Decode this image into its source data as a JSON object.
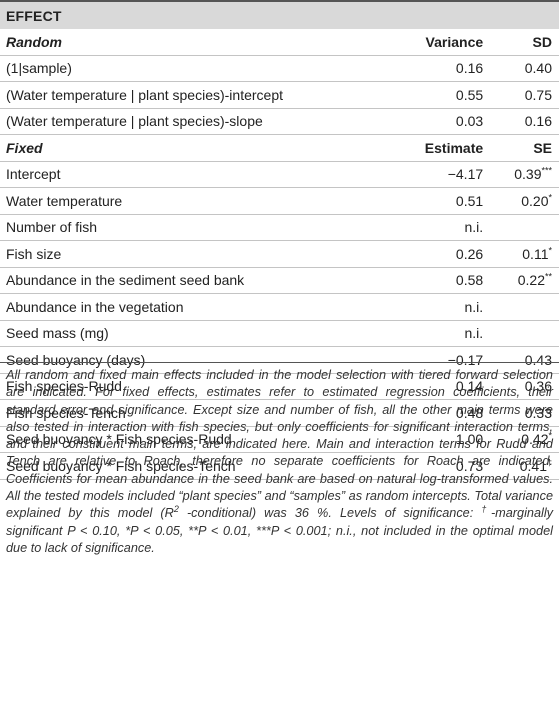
{
  "header": {
    "label": "EFFECT"
  },
  "sections": [
    {
      "title": "Random",
      "col2": "Variance",
      "col3": "SD",
      "rows": [
        {
          "label": "(1|sample)",
          "value": "0.16",
          "error": "0.40",
          "sig": ""
        },
        {
          "label": "(Water temperature | plant species)-intercept",
          "value": "0.55",
          "error": "0.75",
          "sig": ""
        },
        {
          "label": "(Water temperature | plant species)-slope",
          "value": "0.03",
          "error": "0.16",
          "sig": ""
        }
      ]
    },
    {
      "title": "Fixed",
      "col2": "Estimate",
      "col3": "SE",
      "rows": [
        {
          "label": "Intercept",
          "value": "−4.17",
          "error": "0.39",
          "sig": "***"
        },
        {
          "label": "Water temperature",
          "value": "0.51",
          "error": "0.20",
          "sig": "*"
        },
        {
          "label": "Number of fish",
          "value": "n.i.",
          "error": "",
          "sig": ""
        },
        {
          "label": "Fish size",
          "value": "0.26",
          "error": "0.11",
          "sig": "*"
        },
        {
          "label": "Abundance in the sediment seed bank",
          "value": "0.58",
          "error": "0.22",
          "sig": "**"
        },
        {
          "label": "Abundance in the vegetation",
          "value": "n.i.",
          "error": "",
          "sig": ""
        },
        {
          "label": "Seed mass (mg)",
          "value": "n.i.",
          "error": "",
          "sig": ""
        },
        {
          "label": "Seed buoyancy (days)",
          "value": "−0.17",
          "error": "0.43",
          "sig": ""
        },
        {
          "label": "Fish species-Rudd",
          "value": "0.14",
          "error": "0.36",
          "sig": ""
        },
        {
          "label": "Fish species-Tench",
          "value": "0.48",
          "error": "0.33",
          "sig": ""
        },
        {
          "label": "Seed buoyancy * Fish species-Rudd",
          "value": "1.00",
          "error": "0.42",
          "sig": "*"
        },
        {
          "label": "Seed buoyancy * Fish species-Tench",
          "value": "0.73",
          "error": "0.41",
          "sig": "†"
        }
      ]
    }
  ],
  "footnote": {
    "p1": "All random and fixed main effects included in the model selection with tiered forward selection are indicated. For fixed effects, estimates refer to estimated regression coefficients, their standard error and significance. Except size and number of fish, all the other main terms were also tested in interaction with fish species, but only coefficients for significant interaction terms, and their constituent main terms, are indicated here. Main and interaction terms for Rudd and Tench are relative to Roach, therefore no separate coefficients for Roach are indicated. Coefficients for mean abundance in the seed bank are based on natural log-transformed values. All the tested models included “plant species” and “samples” as random intercepts. Total variance explained by this model (R",
    "sup1": "2",
    "p2": " -conditional) was 36 %. Levels of significance: ",
    "sup2": "†",
    "p3": "-marginally significant P < 0.10, *P < 0.05, **P < 0.01, ***P < 0.001; n.i., not included in the optimal model due to lack of significance."
  }
}
